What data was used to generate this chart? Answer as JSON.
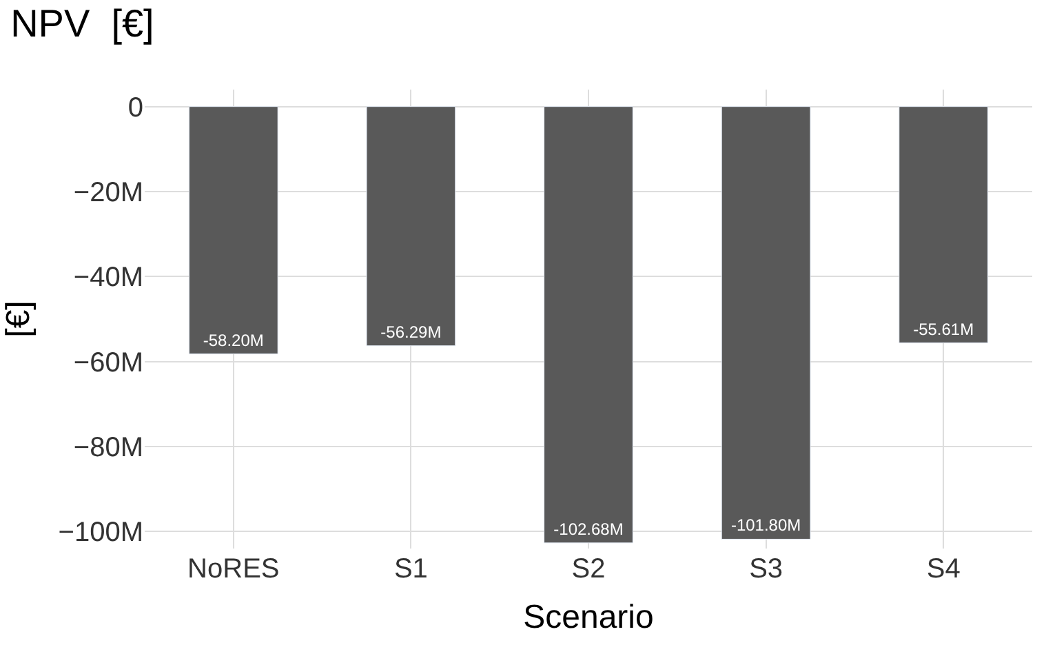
{
  "chart_data": {
    "type": "bar",
    "title": "NPV  [€]",
    "xlabel": "Scenario",
    "ylabel": "[€]",
    "categories": [
      "NoRES",
      "S1",
      "S2",
      "S3",
      "S4"
    ],
    "values": [
      -58.2,
      -56.29,
      -102.68,
      -101.8,
      -55.61
    ],
    "value_labels": [
      "-58.20M",
      "-56.29M",
      "-102.68M",
      "-101.80M",
      "-55.61M"
    ],
    "color": "#595959",
    "ylim": [
      -104,
      4
    ],
    "yticks": [
      {
        "value": 0,
        "label": "0"
      },
      {
        "value": -20,
        "label": "−20M"
      },
      {
        "value": -40,
        "label": "−40M"
      },
      {
        "value": -60,
        "label": "−60M"
      },
      {
        "value": -80,
        "label": "−80M"
      },
      {
        "value": -100,
        "label": "−100M"
      }
    ],
    "grid": true
  }
}
